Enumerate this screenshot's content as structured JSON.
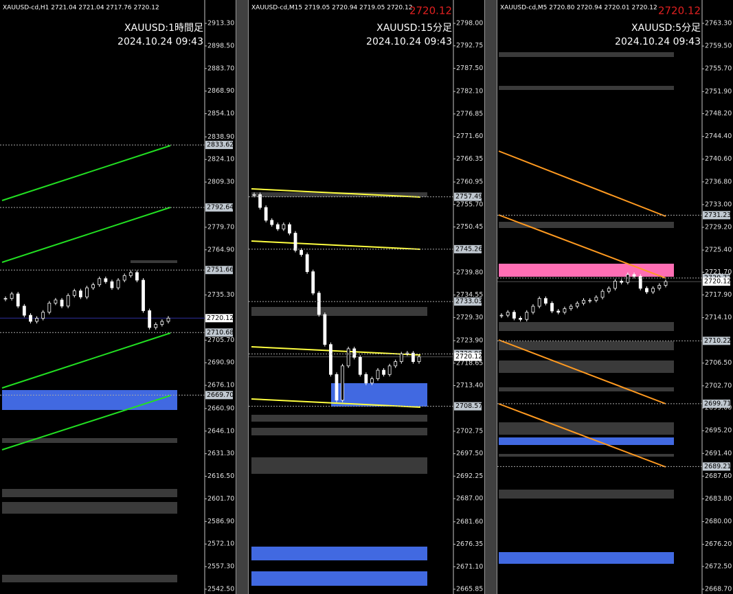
{
  "panels": [
    {
      "header": "XAUUSD-cd,H1  2721.04 2721.04 2717.76 2720.12",
      "title": "XAUUSD:1時間足",
      "datetime": "2024.10.24 09:43",
      "bid": null,
      "axis_ticks": [
        "2913.30",
        "2898.50",
        "2883.70",
        "2868.90",
        "2854.10",
        "2838.90",
        "2824.10",
        "2809.30",
        "2779.70",
        "2764.90",
        "2735.30",
        "2705.70",
        "2690.90",
        "2676.10",
        "2660.90",
        "2646.10",
        "2631.30",
        "2616.50",
        "2601.70",
        "2586.90",
        "2572.10",
        "2557.30",
        "2542.50"
      ],
      "axis_top": "2913.30",
      "axis_bottom": "2542.50",
      "price_tags": [
        "2833.62",
        "2792.64",
        "2751.66",
        "2710.68",
        "2669.70"
      ],
      "current_price": "2720.12",
      "closes": [
        2733,
        2736,
        2728,
        2722,
        2718,
        2720,
        2724,
        2730,
        2732,
        2728,
        2735,
        2738,
        2734,
        2740,
        2742,
        2746,
        2744,
        2740,
        2745,
        2748,
        2750,
        2745,
        2725,
        2714,
        2716,
        2718,
        2720.12
      ]
    },
    {
      "header": "XAUUSD-cd,M15  2719.05 2720.94 2719.05 2720.12",
      "title": "XAUUSD:15分足",
      "datetime": "2024.10.24 09:43",
      "bid": "2720.12",
      "axis_ticks": [
        "2798.00",
        "2792.75",
        "2787.50",
        "2782.10",
        "2776.85",
        "2771.60",
        "2766.35",
        "2760.95",
        "2755.70",
        "2750.45",
        "2739.80",
        "2734.55",
        "2729.30",
        "2723.90",
        "2718.65",
        "2713.40",
        "2702.75",
        "2697.50",
        "2692.25",
        "2687.00",
        "2681.60",
        "2676.35",
        "2671.10",
        "2665.85"
      ],
      "axis_top": "2798.00",
      "axis_bottom": "2665.85",
      "price_tags": [
        "2757.49",
        "2745.26",
        "2733.03",
        "2720.80",
        "2708.57"
      ],
      "current_price": "2720.12",
      "closes": [
        2758,
        2755,
        2752,
        2751,
        2750,
        2751,
        2749,
        2745,
        2744,
        2740,
        2735,
        2730,
        2723,
        2716,
        2710,
        2718,
        2722,
        2720,
        2716,
        2714,
        2715,
        2717,
        2716,
        2718,
        2719,
        2720.8,
        2721,
        2719,
        2720.12
      ]
    },
    {
      "header": "XAUUSD-cd,M5  2720.80 2720.94 2720.01 2720.12",
      "title": "XAUUSD:5分足",
      "datetime": "2024.10.24 09:43",
      "bid": "2720.12",
      "axis_ticks": [
        "2763.30",
        "2759.50",
        "2755.70",
        "2751.90",
        "2748.20",
        "2744.40",
        "2740.60",
        "2736.80",
        "2733.00",
        "2729.20",
        "2725.40",
        "2721.70",
        "2717.90",
        "2714.10",
        "2706.50",
        "2702.70",
        "2699.00",
        "2695.20",
        "2691.40",
        "2687.60",
        "2683.80",
        "2680.00",
        "2676.20",
        "2672.50",
        "2668.70"
      ],
      "axis_top": "2763.30",
      "axis_bottom": "2668.70",
      "price_tags": [
        "2731.23",
        "2720.72",
        "2710.22",
        "2699.71",
        "2689.21"
      ],
      "current_price": "2720.12",
      "closes": [
        2714.5,
        2715,
        2714,
        2713.8,
        2715,
        2716,
        2717.3,
        2716.5,
        2715.2,
        2715,
        2715.6,
        2716,
        2716.5,
        2717,
        2717,
        2717.5,
        2718.5,
        2719,
        2720.2,
        2720,
        2721.3,
        2721,
        2719,
        2718.4,
        2719,
        2719.5,
        2720.12
      ]
    }
  ]
}
